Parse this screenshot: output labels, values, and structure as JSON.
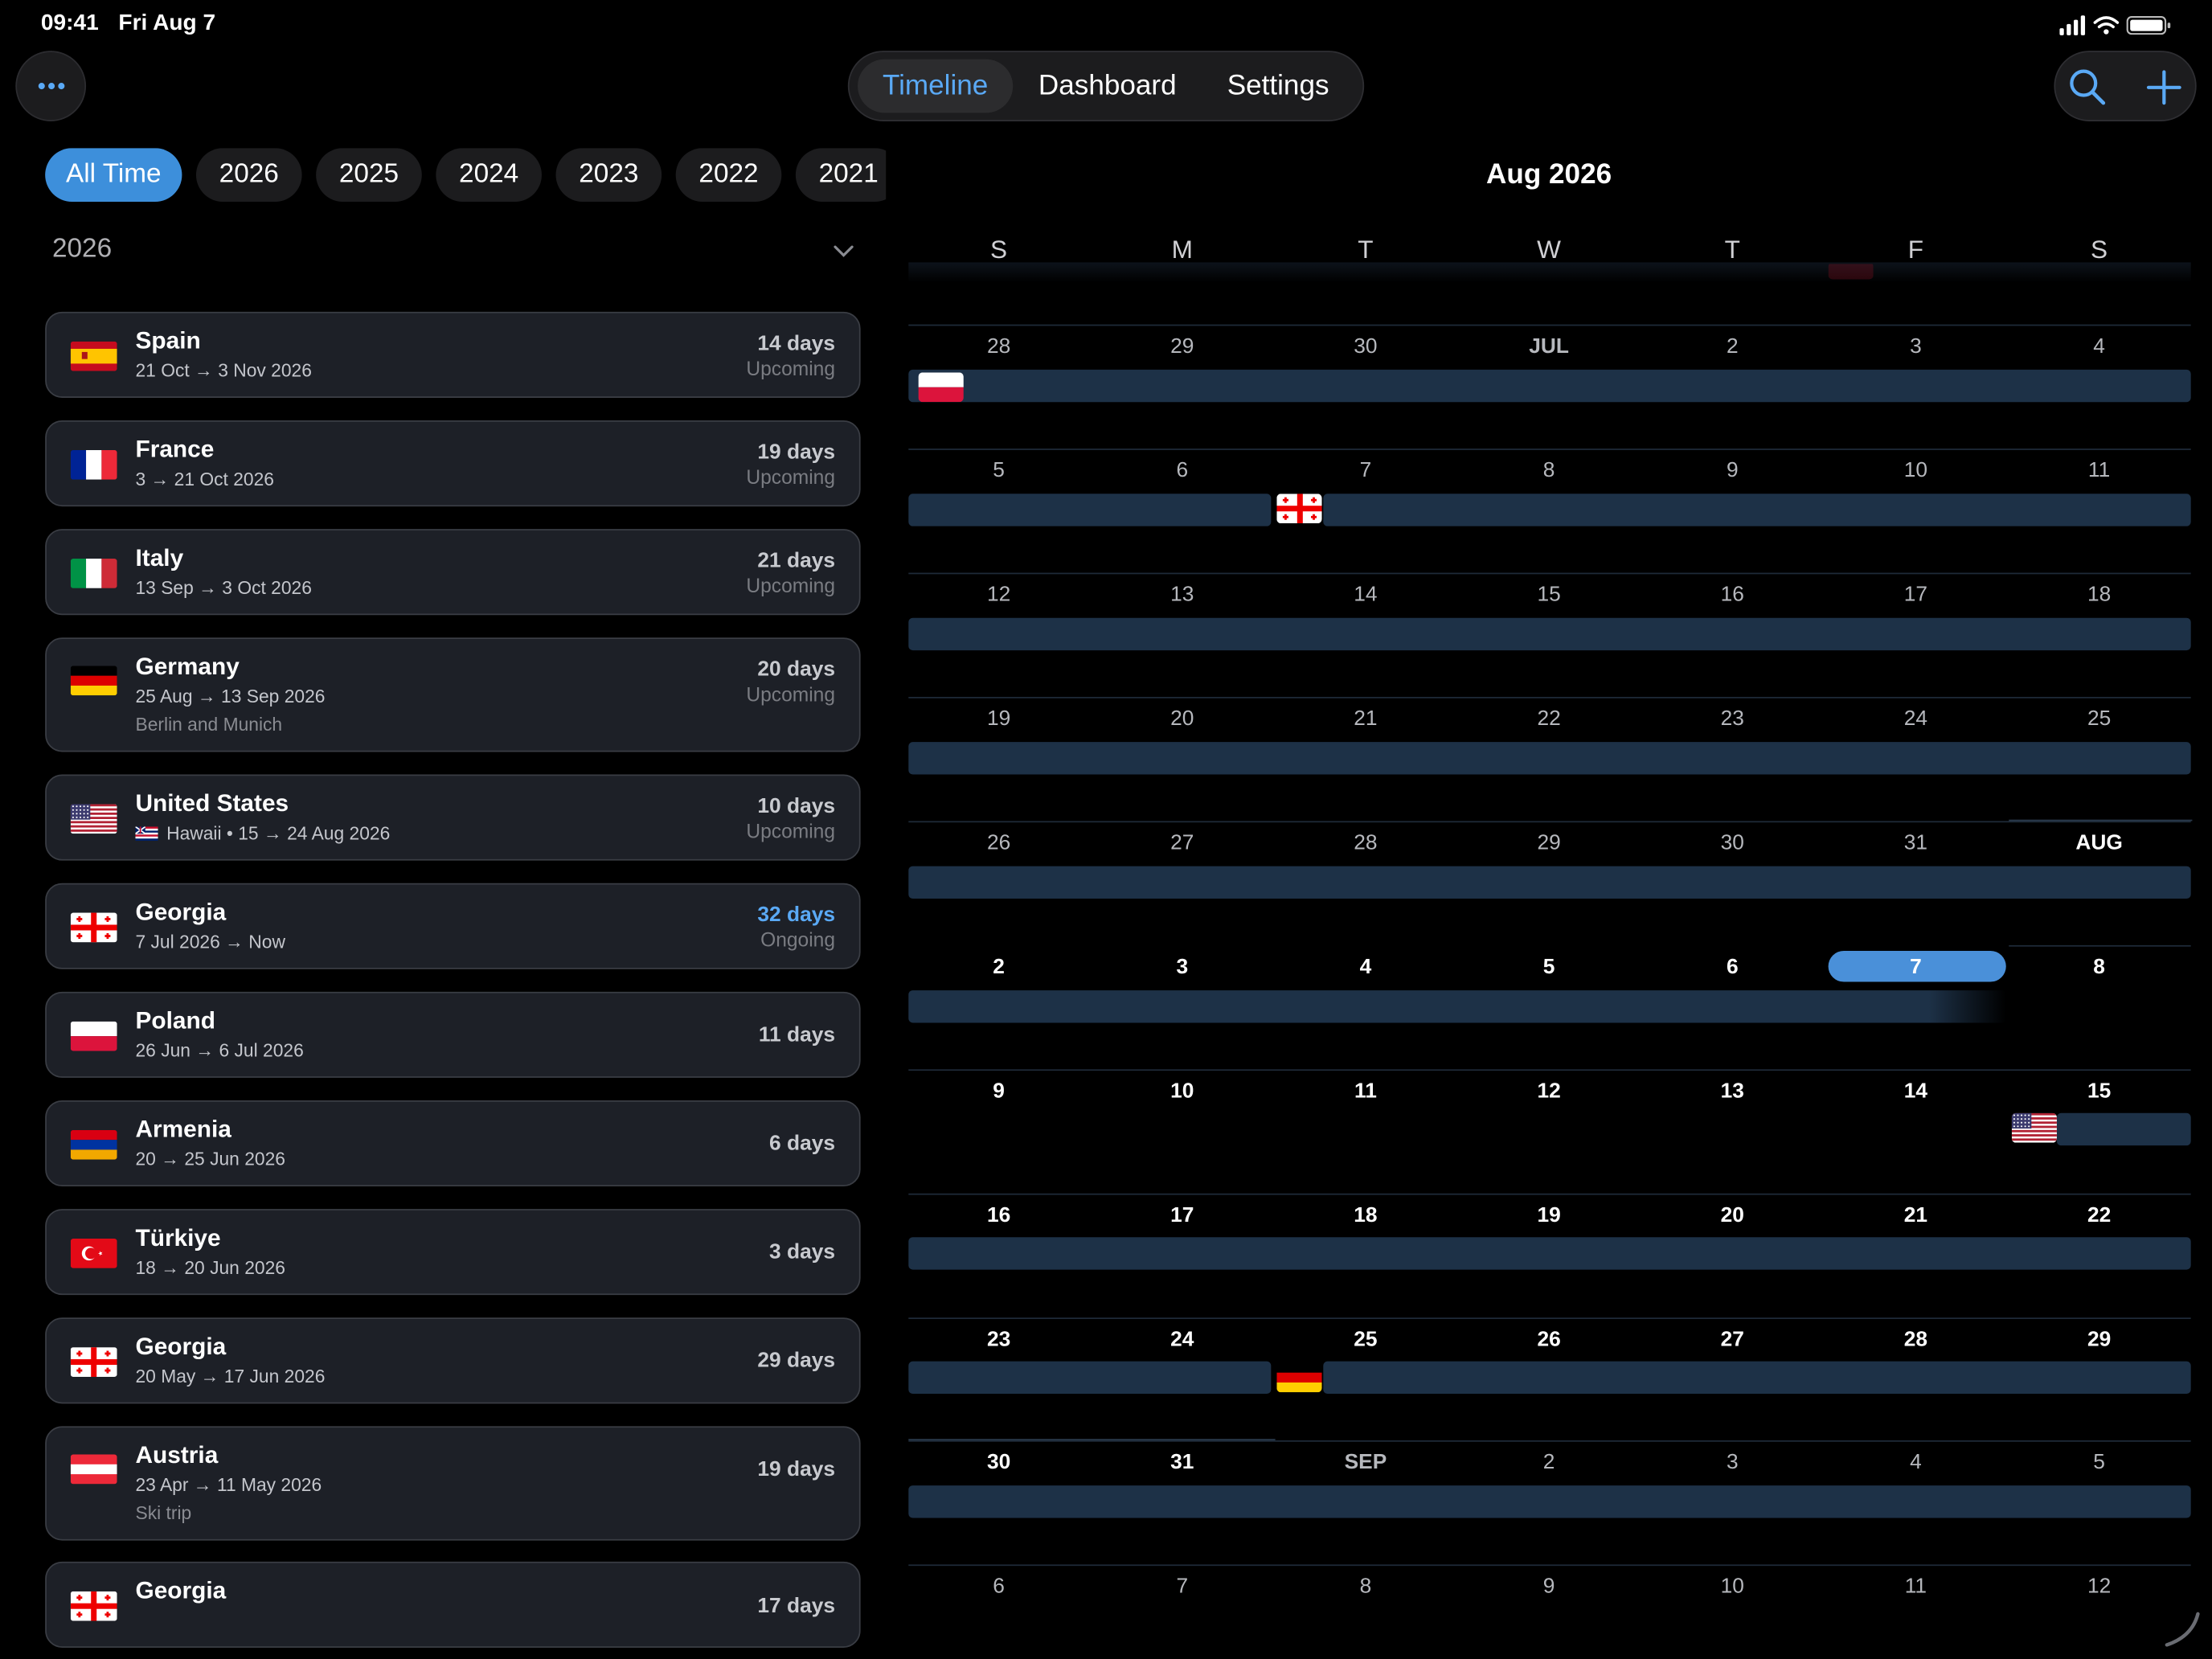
{
  "status": {
    "time": "09:41",
    "date": "Fri Aug 7"
  },
  "nav": {
    "tabs": [
      "Timeline",
      "Dashboard",
      "Settings"
    ],
    "active_tab": "Timeline"
  },
  "filters": [
    "All Time",
    "2026",
    "2025",
    "2024",
    "2023",
    "2022",
    "2021"
  ],
  "section": {
    "year": "2026"
  },
  "trips": [
    {
      "country": "Spain",
      "flag": "spain",
      "dates": "21 Oct → 3 Nov 2026",
      "days": "14 days",
      "state": "Upcoming"
    },
    {
      "country": "France",
      "flag": "france",
      "dates": "3 → 21 Oct 2026",
      "days": "19 days",
      "state": "Upcoming"
    },
    {
      "country": "Italy",
      "flag": "italy",
      "dates": "13 Sep → 3 Oct 2026",
      "days": "21 days",
      "state": "Upcoming"
    },
    {
      "country": "Germany",
      "flag": "germany",
      "dates": "25 Aug → 13 Sep 2026",
      "note": "Berlin and Munich",
      "days": "20 days",
      "state": "Upcoming"
    },
    {
      "country": "United States",
      "flag": "usa",
      "dates": "Hawaii • 15 → 24 Aug 2026",
      "days": "10 days",
      "state": "Upcoming"
    },
    {
      "country": "Georgia",
      "flag": "georgia",
      "dates": "7 Jul 2026 → Now",
      "days": "32 days",
      "state": "Ongoing"
    },
    {
      "country": "Poland",
      "flag": "poland",
      "dates": "26 Jun → 6 Jul 2026",
      "days": "11 days",
      "state": ""
    },
    {
      "country": "Armenia",
      "flag": "armenia",
      "dates": "20 → 25 Jun 2026",
      "days": "6 days",
      "state": ""
    },
    {
      "country": "Türkiye",
      "flag": "turkiye",
      "dates": "18 → 20 Jun 2026",
      "days": "3 days",
      "state": ""
    },
    {
      "country": "Georgia",
      "flag": "georgia",
      "dates": "20 May → 17 Jun 2026",
      "days": "29 days",
      "state": ""
    },
    {
      "country": "Austria",
      "flag": "austria",
      "dates": "23 Apr → 11 May 2026",
      "note": "Ski trip",
      "days": "19 days",
      "state": ""
    },
    {
      "country": "Georgia",
      "flag": "georgia",
      "dates": "",
      "days": "17 days",
      "state": ""
    }
  ],
  "calendar": {
    "month_title": "Aug 2026",
    "weekdays": [
      "S",
      "M",
      "T",
      "W",
      "T",
      "F",
      "S"
    ],
    "today": "7",
    "weeks": [
      [
        "28",
        "29",
        "30",
        "JUL",
        "2",
        "3",
        "4"
      ],
      [
        "5",
        "6",
        "7",
        "8",
        "9",
        "10",
        "11"
      ],
      [
        "12",
        "13",
        "14",
        "15",
        "16",
        "17",
        "18"
      ],
      [
        "19",
        "20",
        "21",
        "22",
        "23",
        "24",
        "25"
      ],
      [
        "26",
        "27",
        "28",
        "29",
        "30",
        "31",
        "AUG"
      ],
      [
        "2",
        "3",
        "4",
        "5",
        "6",
        "7",
        "8"
      ],
      [
        "9",
        "10",
        "11",
        "12",
        "13",
        "14",
        "15"
      ],
      [
        "16",
        "17",
        "18",
        "19",
        "20",
        "21",
        "22"
      ],
      [
        "23",
        "24",
        "25",
        "26",
        "27",
        "28",
        "29"
      ],
      [
        "30",
        "31",
        "SEP",
        "2",
        "3",
        "4",
        "5"
      ],
      [
        "6",
        "7",
        "8",
        "9",
        "10",
        "11",
        "12"
      ]
    ]
  },
  "colors": {
    "accent": "#4a90d9",
    "trip_bar": "#1d3147",
    "card_bg": "#1d2027",
    "background": "#000000"
  }
}
